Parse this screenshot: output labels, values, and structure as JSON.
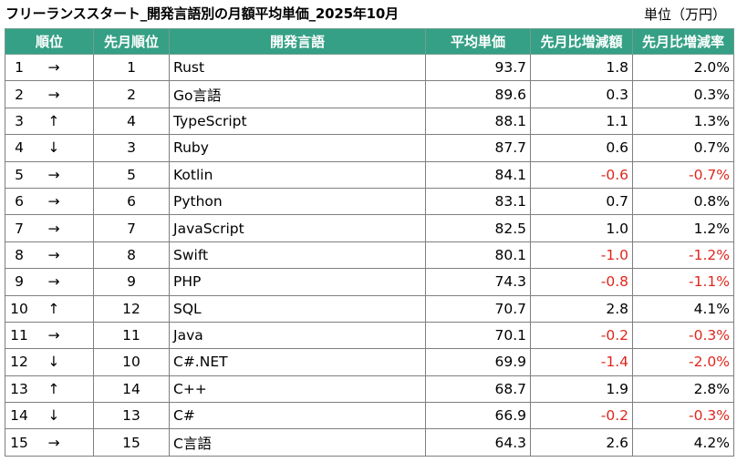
{
  "title": "フリーランススタート_開発言語別の月額平均単価_2025年10月",
  "unit": "単位（万円）",
  "headers": [
    "順位",
    "先月順位",
    "開発言語",
    "平均単価",
    "先月比増減額",
    "先月比増減率"
  ],
  "rows": [
    {
      "rank": "1",
      "trend": "→",
      "trend_icon": "arrow-right-icon",
      "prev_rank": "1",
      "language": "Rust",
      "avg_price": "93.7",
      "change": "1.8",
      "change_rate": "2.0%"
    },
    {
      "rank": "2",
      "trend": "→",
      "trend_icon": "arrow-right-icon",
      "prev_rank": "2",
      "language": "Go言語",
      "avg_price": "89.6",
      "change": "0.3",
      "change_rate": "0.3%"
    },
    {
      "rank": "3",
      "trend": "↑",
      "trend_icon": "arrow-up-icon",
      "prev_rank": "4",
      "language": "TypeScript",
      "avg_price": "88.1",
      "change": "1.1",
      "change_rate": "1.3%"
    },
    {
      "rank": "4",
      "trend": "↓",
      "trend_icon": "arrow-down-icon",
      "prev_rank": "3",
      "language": "Ruby",
      "avg_price": "87.7",
      "change": "0.6",
      "change_rate": "0.7%"
    },
    {
      "rank": "5",
      "trend": "→",
      "trend_icon": "arrow-right-icon",
      "prev_rank": "5",
      "language": "Kotlin",
      "avg_price": "84.1",
      "change": "-0.6",
      "change_rate": "-0.7%"
    },
    {
      "rank": "6",
      "trend": "→",
      "trend_icon": "arrow-right-icon",
      "prev_rank": "6",
      "language": "Python",
      "avg_price": "83.1",
      "change": "0.7",
      "change_rate": "0.8%"
    },
    {
      "rank": "7",
      "trend": "→",
      "trend_icon": "arrow-right-icon",
      "prev_rank": "7",
      "language": "JavaScript",
      "avg_price": "82.5",
      "change": "1.0",
      "change_rate": "1.2%"
    },
    {
      "rank": "8",
      "trend": "→",
      "trend_icon": "arrow-right-icon",
      "prev_rank": "8",
      "language": "Swift",
      "avg_price": "80.1",
      "change": "-1.0",
      "change_rate": "-1.2%"
    },
    {
      "rank": "9",
      "trend": "→",
      "trend_icon": "arrow-right-icon",
      "prev_rank": "9",
      "language": "PHP",
      "avg_price": "74.3",
      "change": "-0.8",
      "change_rate": "-1.1%"
    },
    {
      "rank": "10",
      "trend": "↑",
      "trend_icon": "arrow-up-icon",
      "prev_rank": "12",
      "language": "SQL",
      "avg_price": "70.7",
      "change": "2.8",
      "change_rate": "4.1%"
    },
    {
      "rank": "11",
      "trend": "→",
      "trend_icon": "arrow-right-icon",
      "prev_rank": "11",
      "language": "Java",
      "avg_price": "70.1",
      "change": "-0.2",
      "change_rate": "-0.3%"
    },
    {
      "rank": "12",
      "trend": "↓",
      "trend_icon": "arrow-down-icon",
      "prev_rank": "10",
      "language": "C#.NET",
      "avg_price": "69.9",
      "change": "-1.4",
      "change_rate": "-2.0%"
    },
    {
      "rank": "13",
      "trend": "↑",
      "trend_icon": "arrow-up-icon",
      "prev_rank": "14",
      "language": "C++",
      "avg_price": "68.7",
      "change": "1.9",
      "change_rate": "2.8%"
    },
    {
      "rank": "14",
      "trend": "↓",
      "trend_icon": "arrow-down-icon",
      "prev_rank": "13",
      "language": "C#",
      "avg_price": "66.9",
      "change": "-0.2",
      "change_rate": "-0.3%"
    },
    {
      "rank": "15",
      "trend": "→",
      "trend_icon": "arrow-right-icon",
      "prev_rank": "15",
      "language": "C言語",
      "avg_price": "64.3",
      "change": "2.6",
      "change_rate": "4.2%"
    }
  ],
  "colors": {
    "header_bg": "#35a085",
    "header_text": "#ffffff",
    "negative": "#e0261d",
    "border": "#7f7f7f"
  }
}
